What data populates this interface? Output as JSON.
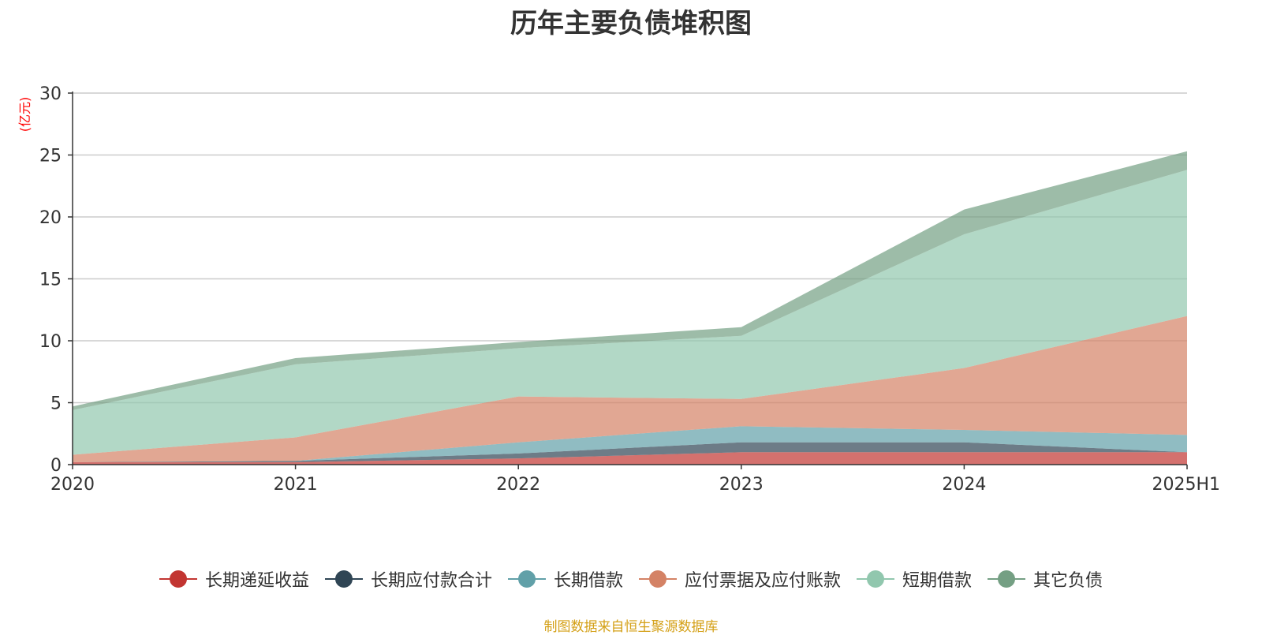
{
  "chart_data": {
    "type": "area",
    "title": "历年主要负债堆积图",
    "ylabel": "(亿元)",
    "xlabel": "",
    "categories": [
      "2020",
      "2021",
      "2022",
      "2023",
      "2024",
      "2025H1"
    ],
    "ylim": [
      0,
      30
    ],
    "yticks": [
      0,
      5,
      10,
      15,
      20,
      25,
      30
    ],
    "stacked": true,
    "grid": true,
    "legend_position": "bottom",
    "series": [
      {
        "name": "长期递延收益",
        "color": "#c23531",
        "values": [
          0.2,
          0.2,
          0.5,
          1.0,
          1.0,
          1.0
        ]
      },
      {
        "name": "长期应付款合计",
        "color": "#2f4554",
        "values": [
          0.0,
          0.1,
          0.4,
          0.8,
          0.8,
          0.0
        ]
      },
      {
        "name": "长期借款",
        "color": "#61a0a8",
        "values": [
          0.0,
          0.0,
          0.9,
          1.3,
          1.0,
          1.4
        ]
      },
      {
        "name": "应付票据及应付账款",
        "color": "#d48265",
        "values": [
          0.6,
          1.9,
          3.7,
          2.2,
          5.0,
          9.6
        ]
      },
      {
        "name": "短期借款",
        "color": "#91c7ae",
        "values": [
          3.6,
          5.9,
          3.9,
          5.1,
          10.8,
          11.8
        ]
      },
      {
        "name": "其它负债",
        "color": "#749f83",
        "values": [
          0.3,
          0.5,
          0.5,
          0.7,
          2.0,
          1.5
        ]
      }
    ]
  },
  "legend": {
    "items": [
      "长期递延收益",
      "长期应付款合计",
      "长期借款",
      "应付票据及应付账款",
      "短期借款",
      "其它负债"
    ]
  },
  "footer": {
    "source": "制图数据来自恒生聚源数据库"
  }
}
